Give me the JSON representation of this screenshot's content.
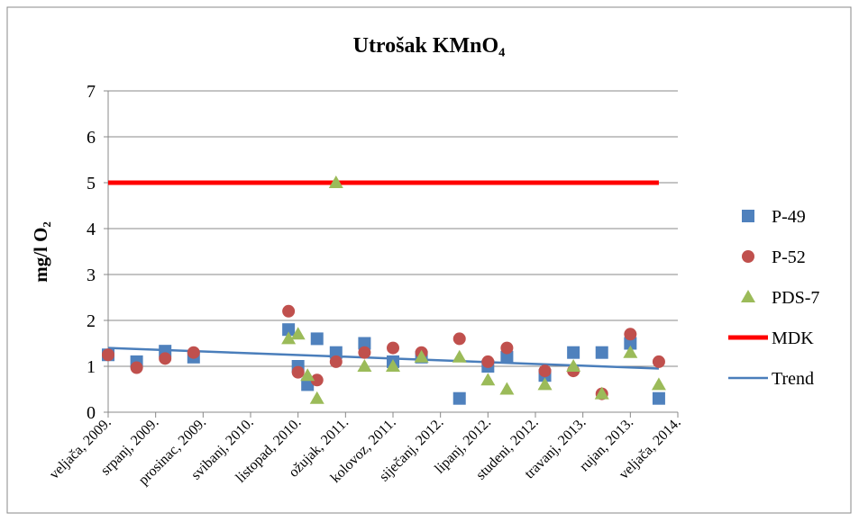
{
  "chart_data": {
    "type": "scatter",
    "title": "Utrošak KMnO₄",
    "y_label": "mg/l O₂",
    "xlim": [
      "2009-02",
      "2014-02"
    ],
    "xticks": [
      {
        "value": "2009-02",
        "label": "veljača, 2009."
      },
      {
        "value": "2009-07",
        "label": "srpanj, 2009."
      },
      {
        "value": "2009-12",
        "label": "prosinac, 2009."
      },
      {
        "value": "2010-05",
        "label": "svibanj, 2010."
      },
      {
        "value": "2010-10",
        "label": "listopad, 2010."
      },
      {
        "value": "2011-03",
        "label": "ožujak, 2011."
      },
      {
        "value": "2011-08",
        "label": "kolovoz, 2011."
      },
      {
        "value": "2012-01",
        "label": "siječanj, 2012."
      },
      {
        "value": "2012-06",
        "label": "lipanj, 2012."
      },
      {
        "value": "2012-11",
        "label": "studeni, 2012."
      },
      {
        "value": "2013-04",
        "label": "travanj, 2013."
      },
      {
        "value": "2013-09",
        "label": "rujan, 2013."
      },
      {
        "value": "2014-02",
        "label": "veljača, 2014."
      }
    ],
    "ylim": [
      0,
      7
    ],
    "yticks": [
      0,
      1,
      2,
      3,
      4,
      5,
      6,
      7
    ],
    "grid": true,
    "legend": "right",
    "series": [
      {
        "name": "P-49",
        "marker": "square",
        "color": "#4f81bd",
        "x": [
          "2009-02",
          "2009-05",
          "2009-08",
          "2009-11",
          "2010-09",
          "2010-10",
          "2010-11",
          "2010-12",
          "2011-02",
          "2011-05",
          "2011-08",
          "2011-11",
          "2012-03",
          "2012-06",
          "2012-08",
          "2012-12",
          "2013-03",
          "2013-06",
          "2013-09",
          "2013-12"
        ],
        "values": [
          1.25,
          1.1,
          1.33,
          1.2,
          1.8,
          1.0,
          0.6,
          1.6,
          1.3,
          1.5,
          1.1,
          1.2,
          0.3,
          1.0,
          1.2,
          0.8,
          1.3,
          1.3,
          1.5,
          0.3
        ]
      },
      {
        "name": "P-52",
        "marker": "circle",
        "color": "#c0504d",
        "x": [
          "2009-02",
          "2009-05",
          "2009-08",
          "2009-11",
          "2010-09",
          "2010-10",
          "2010-12",
          "2011-02",
          "2011-05",
          "2011-08",
          "2011-11",
          "2012-03",
          "2012-06",
          "2012-08",
          "2012-12",
          "2013-03",
          "2013-06",
          "2013-09",
          "2013-12"
        ],
        "values": [
          1.25,
          0.97,
          1.17,
          1.3,
          2.2,
          0.87,
          0.7,
          1.1,
          1.3,
          1.4,
          1.3,
          1.6,
          1.1,
          1.4,
          0.9,
          0.9,
          0.4,
          1.7,
          1.1
        ]
      },
      {
        "name": "PDS-7",
        "marker": "triangle",
        "color": "#9bbb59",
        "x": [
          "2010-09",
          "2010-10",
          "2010-11",
          "2010-12",
          "2011-02",
          "2011-05",
          "2011-08",
          "2011-11",
          "2012-03",
          "2012-06",
          "2012-08",
          "2012-12",
          "2013-03",
          "2013-06",
          "2013-09",
          "2013-12"
        ],
        "values": [
          1.6,
          1.7,
          0.8,
          0.3,
          5.0,
          1.0,
          1.0,
          1.2,
          1.2,
          0.7,
          0.5,
          0.6,
          1.0,
          0.4,
          1.3,
          0.6
        ]
      },
      {
        "name": "MDK",
        "marker": "line",
        "color": "#ff0000",
        "width": 5,
        "x": [
          "2009-02",
          "2013-12"
        ],
        "values": [
          5,
          5
        ]
      },
      {
        "name": "Trend",
        "marker": "line",
        "color": "#4a7ebb",
        "width": 2.5,
        "x": [
          "2009-02",
          "2011-08",
          "2013-12"
        ],
        "values": [
          1.4,
          1.17,
          0.95
        ]
      }
    ]
  }
}
